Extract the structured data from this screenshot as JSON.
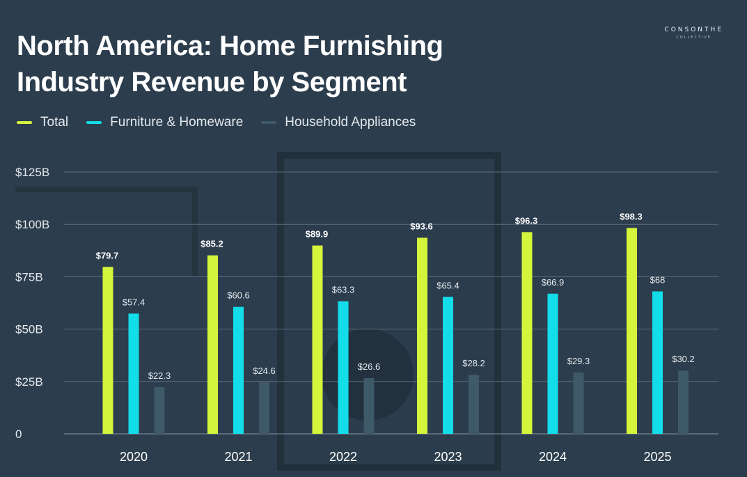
{
  "logo": {
    "line1": "CONSONTHE",
    "line2": "COLLECTIVE"
  },
  "title_line1": "North America: Home Furnishing",
  "title_line2": "Industry Revenue by Segment",
  "chart_data": {
    "type": "bar",
    "categories": [
      "2020",
      "2021",
      "2022",
      "2023",
      "2024",
      "2025"
    ],
    "series": [
      {
        "name": "Total",
        "color": "#d4f53c",
        "values": [
          79.7,
          85.2,
          89.9,
          93.6,
          96.3,
          98.3
        ],
        "labels": [
          "$79.7",
          "$85.2",
          "$89.9",
          "$93.6",
          "$96.3",
          "$98.3"
        ],
        "label_bold": true
      },
      {
        "name": "Furniture & Homeware",
        "color": "#13dde8",
        "values": [
          57.4,
          60.6,
          63.3,
          65.4,
          66.9,
          68
        ],
        "labels": [
          "$57.4",
          "$60.6",
          "$63.3",
          "$65.4",
          "$66.9",
          "$68"
        ],
        "label_bold": false
      },
      {
        "name": "Household Appliances",
        "color": "#3e5968",
        "values": [
          22.3,
          24.6,
          26.6,
          28.2,
          29.3,
          30.2
        ],
        "labels": [
          "$22.3",
          "$24.6",
          "$26.6",
          "$28.2",
          "$29.3",
          "$30.2"
        ],
        "label_bold": false
      }
    ],
    "ylim": [
      0,
      125
    ],
    "yticks": [
      0,
      25,
      50,
      75,
      100,
      125
    ],
    "ytick_labels": [
      "0",
      "$25B",
      "$50B",
      "$75B",
      "$100B",
      "$125B"
    ],
    "grid": true,
    "legend_position": "top-left",
    "xlabel": "",
    "ylabel": ""
  }
}
